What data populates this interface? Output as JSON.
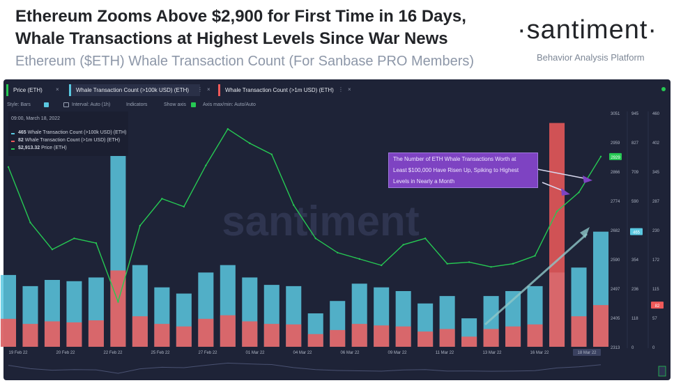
{
  "header": {
    "headline_line1": "Ethereum Zooms Above $2,900 for First Time in 16 Days,",
    "headline_line2": "Whale Transactions at Highest Levels Since War News",
    "subtitle": "Ethereum ($ETH) Whale Transaction Count (For Sanbase PRO Members)",
    "brand": "·santiment·",
    "tagline": "Behavior Analysis Platform"
  },
  "tabs": [
    {
      "label": "Price (ETH)",
      "color": "#26c953"
    },
    {
      "label": "Whale Transaction Count (>100k USD) (ETH)",
      "color": "#5ac8e0"
    },
    {
      "label": "Whale Transaction Count (>1m USD) (ETH)",
      "color": "#f05a5a"
    }
  ],
  "tab_close": "×",
  "tab_menu": "⋮",
  "toolbar": {
    "style": "Style: Bars",
    "interval": "Interval: Auto (1h)",
    "indicators": "Indicators",
    "show_axis": "Show axis",
    "axis_maxmin": "Axis max/min: Auto/Auto"
  },
  "tooltip": {
    "date": "09:00, March 18, 2022",
    "rows": [
      {
        "value": "465",
        "label": "Whale Transaction Count (>100k USD) (ETH)",
        "color": "#5ac8e0"
      },
      {
        "value": "82",
        "label": "Whale Transaction Count (>1m USD) (ETH)",
        "color": "#f05a5a"
      },
      {
        "value": "$2,913.32",
        "label": "Price (ETH)",
        "color": "#26c953"
      }
    ]
  },
  "callout": {
    "lines": [
      "The Number of ETH Whale Transactions Worth at",
      "Least $100,000 Have Risen Up, Spiking to Highest",
      "Levels in Nearly a Month"
    ]
  },
  "watermark": "santiment",
  "colors": {
    "panel_bg": "#1e2337",
    "price": "#26c953",
    "whale_100k": "#5ac8e0",
    "whale_1m": "#f05a5a",
    "callout": "#7e43c2",
    "trend_arrow": "#8fc7c8"
  },
  "chart_data": {
    "type": "bar",
    "x_tick_labels": [
      "19 Feb 22",
      "20 Feb 22",
      "22 Feb 22",
      "25 Feb 22",
      "27 Feb 22",
      "01 Mar 22",
      "04 Mar 22",
      "06 Mar 22",
      "09 Mar 22",
      "11 Mar 22",
      "13 Mar 22",
      "16 Mar 22",
      "18 Mar 22"
    ],
    "price_axis": {
      "ticks": [
        "3051",
        "2959",
        "2866",
        "2774",
        "2682",
        "2590",
        "2497",
        "2405",
        "2313"
      ],
      "range": [
        2313,
        3051
      ],
      "current_label": "2929"
    },
    "whale_100k_axis": {
      "ticks": [
        "945",
        "827",
        "709",
        "590",
        "472",
        "354",
        "236",
        "118",
        "0"
      ],
      "range": [
        0,
        945
      ],
      "current_label": "465"
    },
    "whale_1m_axis": {
      "ticks": [
        "460",
        "402",
        "345",
        "287",
        "230",
        "172",
        "115",
        "57",
        "0"
      ],
      "range": [
        0,
        460
      ],
      "current_label": "82"
    },
    "series": [
      {
        "name": "Price (ETH)",
        "type": "line",
        "x": [
          "19 Feb 22",
          "20 Feb 22",
          "21 Feb 22",
          "22 Feb 22",
          "23 Feb 22",
          "24 Feb 22",
          "25 Feb 22",
          "26 Feb 22",
          "27 Feb 22",
          "28 Feb 22",
          "01 Mar 22",
          "02 Mar 22",
          "03 Mar 22",
          "04 Mar 22",
          "05 Mar 22",
          "06 Mar 22",
          "07 Mar 22",
          "08 Mar 22",
          "09 Mar 22",
          "10 Mar 22",
          "11 Mar 22",
          "12 Mar 22",
          "13 Mar 22",
          "14 Mar 22",
          "15 Mar 22",
          "16 Mar 22",
          "17 Mar 22",
          "18 Mar 22"
        ],
        "values": [
          2880,
          2705,
          2620,
          2655,
          2640,
          2455,
          2695,
          2780,
          2755,
          2885,
          3000,
          2955,
          2920,
          2760,
          2655,
          2610,
          2590,
          2570,
          2635,
          2655,
          2575,
          2580,
          2565,
          2575,
          2600,
          2740,
          2800,
          2913
        ]
      },
      {
        "name": "Whale Transaction Count (>100k USD) (ETH)",
        "type": "bar",
        "x": [
          "19 Feb 22",
          "20 Feb 22",
          "21 Feb 22",
          "22 Feb 22",
          "23 Feb 22",
          "24 Feb 22",
          "25 Feb 22",
          "26 Feb 22",
          "27 Feb 22",
          "28 Feb 22",
          "01 Mar 22",
          "02 Mar 22",
          "03 Mar 22",
          "04 Mar 22",
          "05 Mar 22",
          "06 Mar 22",
          "07 Mar 22",
          "08 Mar 22",
          "09 Mar 22",
          "10 Mar 22",
          "11 Mar 22",
          "12 Mar 22",
          "13 Mar 22",
          "14 Mar 22",
          "15 Mar 22",
          "16 Mar 22",
          "17 Mar 22",
          "18 Mar 22"
        ],
        "values": [
          290,
          245,
          270,
          265,
          280,
          860,
          330,
          240,
          215,
          300,
          330,
          280,
          250,
          245,
          135,
          185,
          255,
          240,
          225,
          175,
          205,
          115,
          205,
          225,
          245,
          300,
          320,
          465
        ]
      },
      {
        "name": "Whale Transaction Count (>1m USD) (ETH)",
        "type": "bar",
        "x": [
          "19 Feb 22",
          "20 Feb 22",
          "21 Feb 22",
          "22 Feb 22",
          "23 Feb 22",
          "24 Feb 22",
          "25 Feb 22",
          "26 Feb 22",
          "27 Feb 22",
          "28 Feb 22",
          "01 Mar 22",
          "02 Mar 22",
          "03 Mar 22",
          "04 Mar 22",
          "05 Mar 22",
          "06 Mar 22",
          "07 Mar 22",
          "08 Mar 22",
          "09 Mar 22",
          "10 Mar 22",
          "11 Mar 22",
          "12 Mar 22",
          "13 Mar 22",
          "14 Mar 22",
          "15 Mar 22",
          "16 Mar 22",
          "17 Mar 22",
          "18 Mar 22"
        ],
        "values": [
          55,
          45,
          50,
          48,
          52,
          150,
          60,
          45,
          40,
          55,
          62,
          50,
          45,
          44,
          25,
          33,
          45,
          42,
          40,
          30,
          35,
          20,
          35,
          40,
          44,
          440,
          60,
          82
        ]
      }
    ]
  }
}
